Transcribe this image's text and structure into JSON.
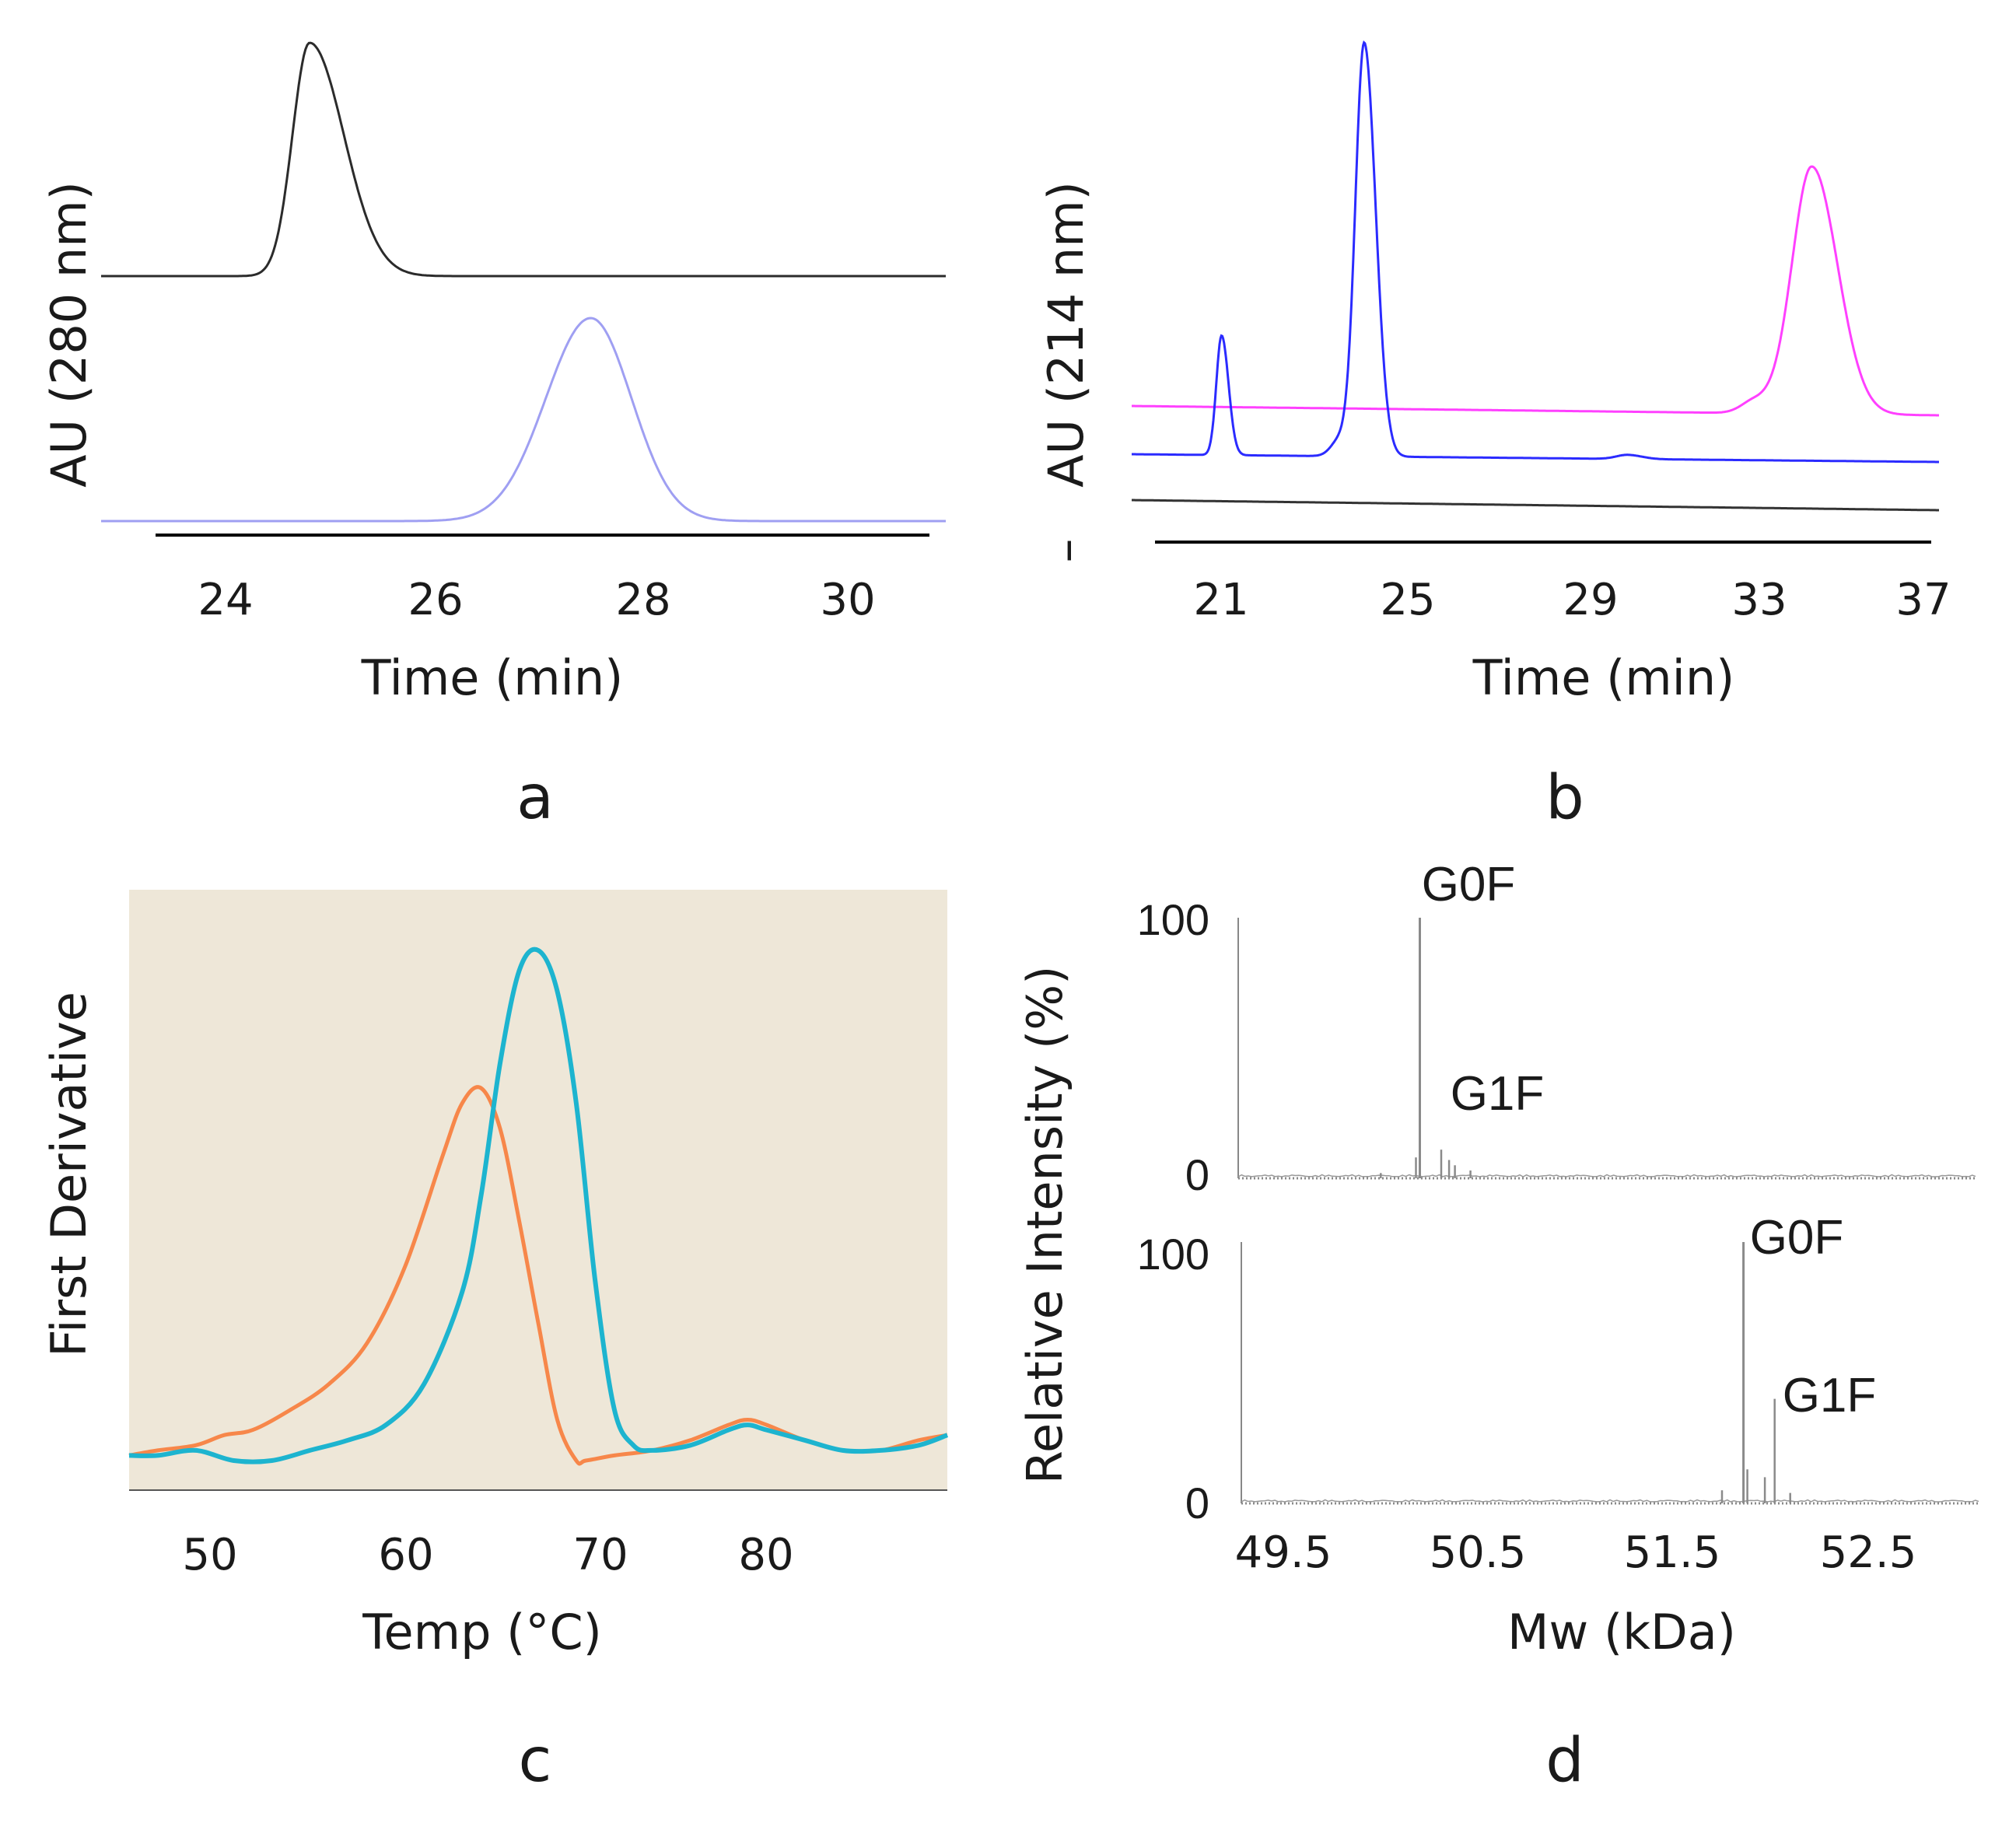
{
  "figure": {
    "panel_letters": [
      "a",
      "b",
      "c",
      "d"
    ],
    "colors": {
      "a_black": "#2b2b2b",
      "a_lavender": "#9f9ff2",
      "b_magenta": "#ff40ff",
      "b_blue": "#2b2bff",
      "b_black": "#333333",
      "c_orange": "#f7874a",
      "c_cyan": "#1db4cf",
      "c_background": "#eee7d8",
      "d_gray": "#8a8a8a"
    }
  },
  "chart_data": [
    {
      "panel": "a",
      "type": "line",
      "title": "",
      "xlabel": "Time (min)",
      "ylabel": "AU (280 nm)",
      "xlim": [
        23.1,
        31.0
      ],
      "xticks": [
        "24",
        "26",
        "28",
        "30"
      ],
      "series": [
        {
          "name": "black trace",
          "color": "#2b2b2b",
          "baseline_offset": 1.05,
          "peaks": [
            {
              "center": 25.05,
              "height": 1.0,
              "width_left": 0.16,
              "width_right": 0.32
            }
          ]
        },
        {
          "name": "lavender trace",
          "color": "#9f9ff2",
          "baseline_offset": 0.0,
          "peaks": [
            {
              "center": 27.68,
              "height": 0.87,
              "width_left": 0.42,
              "width_right": 0.38
            }
          ]
        }
      ]
    },
    {
      "panel": "b",
      "type": "line",
      "title": "",
      "xlabel": "Time (min)",
      "ylabel": "AU (214 nm)",
      "ylabel_prefix": "–",
      "xlim": [
        18.8,
        37.2
      ],
      "xticks": [
        "21",
        "25",
        "29",
        "33",
        "37"
      ],
      "series": [
        {
          "name": "magenta trace",
          "color": "#ff40ff",
          "baseline_offset": 0.3,
          "peaks": [
            {
              "center": 33.0,
              "height": 0.03,
              "width": 0.3
            },
            {
              "center": 34.3,
              "height": 0.6,
              "width": 0.45
            }
          ]
        },
        {
          "name": "blue trace",
          "color": "#2b2bff",
          "baseline_offset": 0.1,
          "peaks": [
            {
              "center": 20.85,
              "height": 0.29,
              "width": 0.12
            },
            {
              "center": 23.55,
              "height": 0.04,
              "width": 0.2
            },
            {
              "center": 24.1,
              "height": 1.0,
              "width": 0.2
            },
            {
              "center": 30.1,
              "height": 0.01,
              "width": 0.25
            }
          ]
        },
        {
          "name": "black trace",
          "color": "#333333",
          "baseline_offset": 0.0,
          "peaks": []
        }
      ]
    },
    {
      "panel": "c",
      "type": "line",
      "title": "",
      "xlabel": "Temp (°C)",
      "ylabel": "First Derivative",
      "xlim": [
        46.5,
        89.5
      ],
      "xticks": [
        "50",
        "60",
        "70",
        "80"
      ],
      "series": [
        {
          "name": "orange trace",
          "color": "#f7874a",
          "x": [
            46.5,
            48,
            50,
            51.5,
            53,
            55,
            57,
            59,
            61,
            63,
            64,
            65,
            66,
            67,
            68,
            69,
            70,
            70.5,
            72,
            74,
            76,
            78,
            79,
            80,
            82,
            84,
            86,
            88,
            89.5
          ],
          "y": [
            0.01,
            0.02,
            0.03,
            0.05,
            0.06,
            0.1,
            0.15,
            0.23,
            0.38,
            0.6,
            0.7,
            0.73,
            0.65,
            0.47,
            0.27,
            0.08,
            0.0,
            0.0,
            0.01,
            0.02,
            0.04,
            0.07,
            0.08,
            0.07,
            0.04,
            0.02,
            0.02,
            0.04,
            0.05
          ]
        },
        {
          "name": "cyan trace",
          "color": "#1db4cf",
          "x": [
            46.5,
            48,
            50,
            52,
            54,
            56,
            58,
            60,
            62,
            64,
            65,
            66,
            67,
            68,
            69,
            70,
            71,
            72,
            73,
            74,
            76,
            78,
            79,
            80,
            82,
            84,
            86,
            88,
            89.5
          ],
          "y": [
            0.01,
            0.01,
            0.02,
            0.0,
            0.0,
            0.02,
            0.04,
            0.07,
            0.15,
            0.33,
            0.52,
            0.78,
            0.96,
            1.0,
            0.92,
            0.7,
            0.35,
            0.1,
            0.03,
            0.02,
            0.03,
            0.06,
            0.07,
            0.06,
            0.04,
            0.02,
            0.02,
            0.03,
            0.05
          ]
        }
      ]
    },
    {
      "panel": "d",
      "type": "line",
      "title": "",
      "xlabel": "Mw (kDa)",
      "ylabel": "Relative Intensity (%)",
      "xlim": [
        49.4,
        53.0
      ],
      "xticks": [
        "49.5",
        "50.5",
        "51.5",
        "52.5"
      ],
      "subplots": [
        {
          "name": "upper spectrum",
          "ylim": [
            0,
            100
          ],
          "yticks": [
            "0",
            "100"
          ],
          "annotations": [
            {
              "label": "G0F",
              "x": 50.2
            },
            {
              "label": "G1F",
              "x": 50.36
            }
          ],
          "peaks": [
            {
              "x": 50.2,
              "y": 100
            },
            {
              "x": 50.18,
              "y": 8
            },
            {
              "x": 50.31,
              "y": 11
            },
            {
              "x": 50.35,
              "y": 7
            },
            {
              "x": 50.38,
              "y": 5
            },
            {
              "x": 50.46,
              "y": 3
            },
            {
              "x": 50.0,
              "y": 2
            }
          ]
        },
        {
          "name": "lower spectrum",
          "ylim": [
            0,
            100
          ],
          "yticks": [
            "0",
            "100"
          ],
          "annotations": [
            {
              "label": "G0F",
              "x": 51.86
            },
            {
              "label": "G1F",
              "x": 52.02
            }
          ],
          "peaks": [
            {
              "x": 51.86,
              "y": 100
            },
            {
              "x": 51.88,
              "y": 13
            },
            {
              "x": 51.97,
              "y": 10
            },
            {
              "x": 52.02,
              "y": 40
            },
            {
              "x": 52.1,
              "y": 4
            },
            {
              "x": 51.75,
              "y": 5
            }
          ]
        }
      ]
    }
  ]
}
